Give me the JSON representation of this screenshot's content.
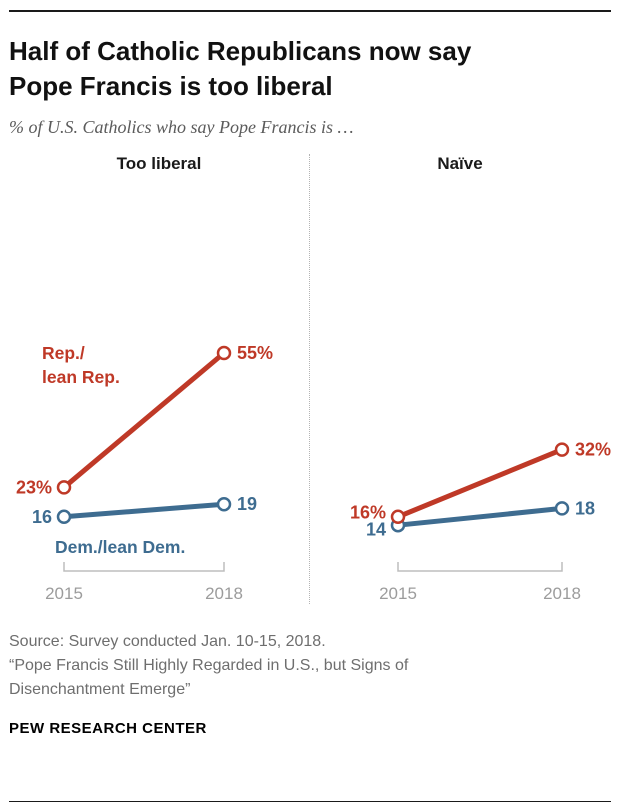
{
  "header": {
    "title": "Half of Catholic Republicans now say Pope Francis is too liberal",
    "subtitle": "% of U.S. Catholics who say Pope Francis is …"
  },
  "colors": {
    "republican": "#bf3927",
    "democrat": "#3e6c90",
    "axis": "#bdbdbd",
    "year_label": "#9c9c9c"
  },
  "chart_data": [
    {
      "type": "line",
      "panel_title": "Too liberal",
      "x": [
        "2015",
        "2018"
      ],
      "series": [
        {
          "name": "Rep./lean Rep.",
          "color_key": "republican",
          "values": [
            23,
            55
          ],
          "labels": [
            "23%",
            "55%"
          ],
          "line_label": [
            "Rep./",
            "lean Rep."
          ]
        },
        {
          "name": "Dem./lean Dem.",
          "color_key": "democrat",
          "values": [
            16,
            19
          ],
          "labels": [
            "16",
            "19"
          ],
          "line_label": [
            "Dem./lean Dem."
          ]
        }
      ]
    },
    {
      "type": "line",
      "panel_title": "Naïve",
      "x": [
        "2015",
        "2018"
      ],
      "series": [
        {
          "name": "Rep./lean Rep.",
          "color_key": "republican",
          "values": [
            16,
            32
          ],
          "labels": [
            "16%",
            "32%"
          ]
        },
        {
          "name": "Dem./lean Dem.",
          "color_key": "democrat",
          "values": [
            14,
            18
          ],
          "labels": [
            "14",
            "18"
          ]
        }
      ]
    }
  ],
  "footer": {
    "source_line1": "Source: Survey conducted Jan. 10-15, 2018.",
    "source_quote": "“Pope Francis Still Highly Regarded in U.S., but Signs of Disenchantment Emerge”",
    "brand": "PEW RESEARCH CENTER"
  }
}
